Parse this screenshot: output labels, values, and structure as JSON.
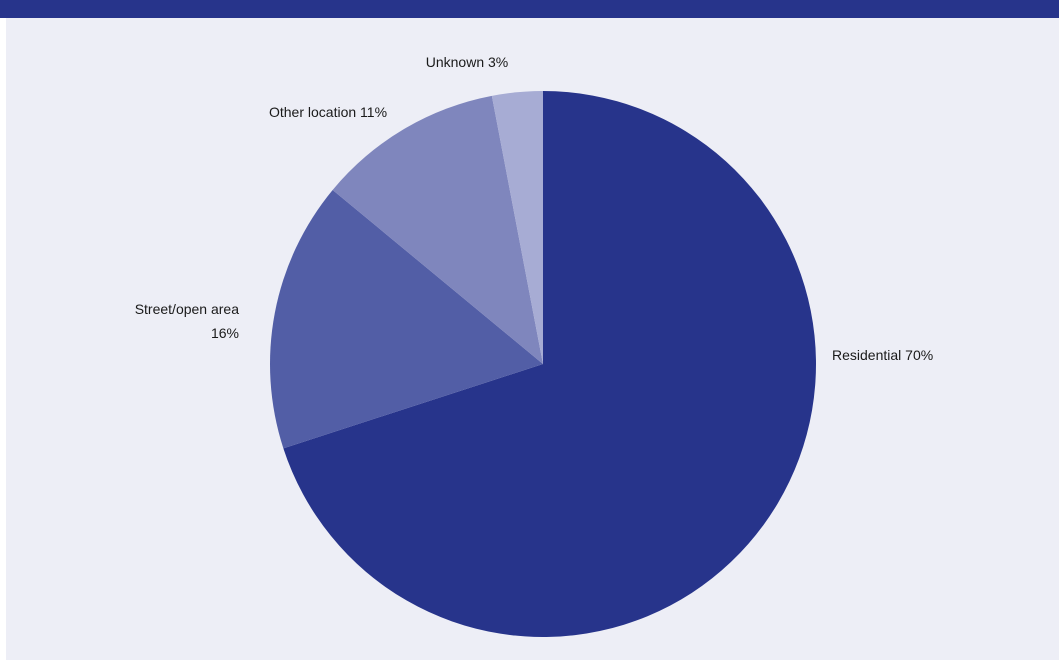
{
  "colors": {
    "header": "#27348b",
    "panel": "#edeef6",
    "slices": [
      "#27348b",
      "#525ea6",
      "#7f86bd",
      "#a7acd4"
    ]
  },
  "chart_data": {
    "type": "pie",
    "title": "",
    "start": "12 o'clock",
    "direction": "clockwise",
    "slices": [
      {
        "label": "Residential",
        "value": 70,
        "text": "Residential 70%"
      },
      {
        "label": "Street/open area",
        "value": 16,
        "text_lines": [
          "Street/open area",
          "16%"
        ]
      },
      {
        "label": "Other location",
        "value": 11,
        "text": "Other location 11%"
      },
      {
        "label": "Unknown",
        "value": 3,
        "text": "Unknown 3%"
      }
    ]
  }
}
